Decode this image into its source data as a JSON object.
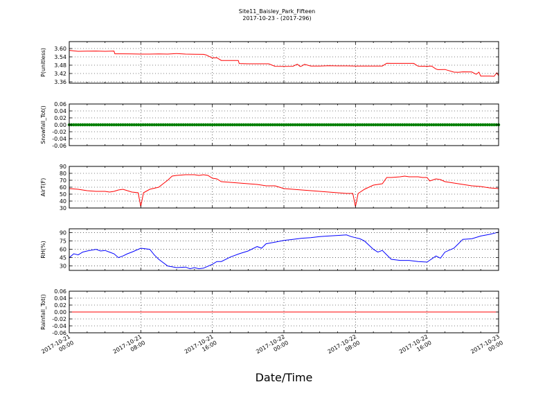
{
  "figure": {
    "title": "Site11_Baisley_Park_Fifteen",
    "subtitle": "2017-10-23 - (2017-296)",
    "xlabel": "Date/Time",
    "x_ticks": [
      {
        "line1": "2017-10-21",
        "line2": "00:00",
        "hour": 0
      },
      {
        "line1": "2017-10-21",
        "line2": "08:00",
        "hour": 8
      },
      {
        "line1": "2017-10-21",
        "line2": "16:00",
        "hour": 16
      },
      {
        "line1": "2017-10-22",
        "line2": "00:00",
        "hour": 24
      },
      {
        "line1": "2017-10-22",
        "line2": "08:00",
        "hour": 32
      },
      {
        "line1": "2017-10-22",
        "line2": "16:00",
        "hour": 40
      },
      {
        "line1": "2017-10-23",
        "line2": "00:00",
        "hour": 48
      }
    ],
    "x_range_hours": [
      0,
      48
    ]
  },
  "chart_data": [
    {
      "type": "line",
      "ylabel": "P(unitless)",
      "ylim": [
        3.35,
        3.65
      ],
      "yticks": [
        "3.60",
        "3.54",
        "3.48",
        "3.42",
        "3.36"
      ],
      "ytick_values": [
        3.6,
        3.54,
        3.48,
        3.42,
        3.36
      ],
      "grid": true,
      "color": "#ff0000",
      "series": [
        {
          "x": [
            0,
            0.5,
            1,
            2,
            3,
            4,
            5,
            5.1,
            6,
            7,
            8,
            9,
            10,
            11,
            12,
            13,
            14,
            15,
            15.3,
            16,
            16.5,
            17,
            18,
            18.9,
            19,
            20,
            21,
            22,
            22.3,
            23,
            24,
            25,
            25.5,
            25.8,
            26,
            26.3,
            27,
            28,
            29,
            30,
            31,
            32,
            33,
            34,
            35,
            35.5,
            36,
            37,
            38,
            38.5,
            39,
            40,
            40.5,
            41,
            41.2,
            42,
            43,
            43.5,
            44,
            45,
            45.5,
            45.8,
            46,
            46.5,
            47,
            47.5,
            47.8,
            48
          ],
          "y": [
            3.587,
            3.583,
            3.58,
            3.581,
            3.582,
            3.58,
            3.582,
            3.562,
            3.562,
            3.561,
            3.56,
            3.56,
            3.561,
            3.56,
            3.564,
            3.56,
            3.559,
            3.558,
            3.554,
            3.532,
            3.534,
            3.514,
            3.514,
            3.514,
            3.492,
            3.49,
            3.49,
            3.49,
            3.49,
            3.472,
            3.471,
            3.472,
            3.487,
            3.471,
            3.474,
            3.486,
            3.474,
            3.474,
            3.476,
            3.475,
            3.475,
            3.474,
            3.474,
            3.474,
            3.474,
            3.494,
            3.493,
            3.493,
            3.493,
            3.493,
            3.473,
            3.472,
            3.474,
            3.452,
            3.448,
            3.449,
            3.43,
            3.429,
            3.432,
            3.431,
            3.414,
            3.43,
            3.401,
            3.401,
            3.401,
            3.4,
            3.425,
            3.404
          ]
        }
      ]
    },
    {
      "type": "line",
      "ylabel": "Snowfall_Tot()",
      "ylim": [
        -0.06,
        0.06
      ],
      "yticks": [
        "0.06",
        "0.04",
        "0.02",
        "0.00",
        "-0.02",
        "-0.04",
        "-0.06"
      ],
      "ytick_values": [
        0.06,
        0.04,
        0.02,
        0.0,
        -0.02,
        -0.04,
        -0.06
      ],
      "grid": true,
      "color": "#007f00",
      "marker": "point",
      "series": [
        {
          "x_start": 0,
          "x_end": 48,
          "x_step": 0.25,
          "y_constant": 0.0
        }
      ]
    },
    {
      "type": "line",
      "ylabel": "AirT(F)",
      "ylim": [
        30,
        90
      ],
      "yticks": [
        "90",
        "80",
        "70",
        "60",
        "50",
        "40",
        "30"
      ],
      "ytick_values": [
        90,
        80,
        70,
        60,
        50,
        40,
        30
      ],
      "grid": true,
      "color": "#ff0000",
      "series": [
        {
          "x": [
            0,
            1,
            2,
            3,
            4,
            4.5,
            5,
            5.5,
            6,
            7,
            7.7,
            8,
            8.3,
            9,
            10,
            10.5,
            11,
            11.5,
            12,
            13,
            14,
            14.5,
            15,
            15.5,
            16,
            16.5,
            17,
            18,
            19,
            20,
            21,
            22,
            23,
            24,
            25,
            26,
            27,
            28,
            29,
            30,
            31,
            31.7,
            32,
            32.3,
            33,
            34,
            35,
            35.5,
            36,
            37,
            37.5,
            38,
            39,
            39.5,
            40,
            40.3,
            41,
            41.5,
            42,
            43,
            44,
            45,
            46,
            47,
            48
          ],
          "y": [
            58,
            57,
            55,
            54,
            54,
            53,
            54,
            56,
            57,
            53,
            52,
            32,
            52,
            57,
            60,
            65,
            70,
            76,
            77,
            78,
            78,
            77,
            78,
            77,
            73,
            72,
            68,
            67,
            66,
            65,
            64,
            62,
            62,
            58,
            57,
            56,
            55,
            54,
            53,
            52,
            51,
            51,
            32,
            51,
            57,
            63,
            65,
            74,
            74,
            75,
            76,
            75,
            75,
            74,
            74,
            69,
            72,
            71,
            68,
            66,
            64,
            62,
            61,
            59,
            58
          ]
        }
      ]
    },
    {
      "type": "line",
      "ylabel": "RH(%)",
      "ylim": [
        22,
        97
      ],
      "yticks": [
        "90",
        "75",
        "60",
        "45",
        "30"
      ],
      "ytick_values": [
        90,
        75,
        60,
        45,
        30
      ],
      "grid": true,
      "color": "#0000ff",
      "series": [
        {
          "x": [
            0,
            0.5,
            1,
            1.5,
            2,
            3,
            3.5,
            4,
            4.5,
            5,
            5.5,
            6,
            6.5,
            7,
            8,
            9,
            9.5,
            10,
            11,
            12,
            13,
            13.5,
            14,
            14.5,
            15,
            16,
            16.5,
            17,
            18,
            19,
            20,
            21,
            21.5,
            22,
            23,
            24,
            25,
            26,
            27,
            28,
            29,
            30,
            31,
            31.5,
            32,
            32.5,
            33,
            34,
            34.5,
            35,
            35.5,
            36,
            37,
            38,
            39,
            40,
            41,
            41.5,
            42,
            43,
            43.5,
            44,
            45,
            46,
            47,
            48
          ],
          "y": [
            45,
            52,
            50,
            55,
            57,
            60,
            57,
            58,
            55,
            52,
            45,
            48,
            52,
            55,
            62,
            60,
            50,
            42,
            30,
            27,
            28,
            25,
            27,
            25,
            26,
            33,
            38,
            38,
            46,
            52,
            57,
            65,
            62,
            70,
            73,
            76,
            78,
            80,
            81,
            83,
            84,
            85,
            86,
            83,
            81,
            79,
            75,
            60,
            55,
            58,
            50,
            42,
            40,
            40,
            38,
            37,
            48,
            44,
            55,
            62,
            70,
            78,
            79,
            84,
            87,
            91
          ]
        }
      ]
    },
    {
      "type": "line",
      "ylabel": "Rainfall_Tot()",
      "ylim": [
        -0.06,
        0.06
      ],
      "yticks": [
        "0.06",
        "0.04",
        "0.02",
        "0.00",
        "-0.02",
        "-0.04",
        "-0.06"
      ],
      "ytick_values": [
        0.06,
        0.04,
        0.02,
        0.0,
        -0.02,
        -0.04,
        -0.06
      ],
      "grid": true,
      "color": "#ff0000",
      "series": [
        {
          "x": [
            0,
            48
          ],
          "y": [
            0.0,
            0.0
          ]
        }
      ]
    }
  ]
}
